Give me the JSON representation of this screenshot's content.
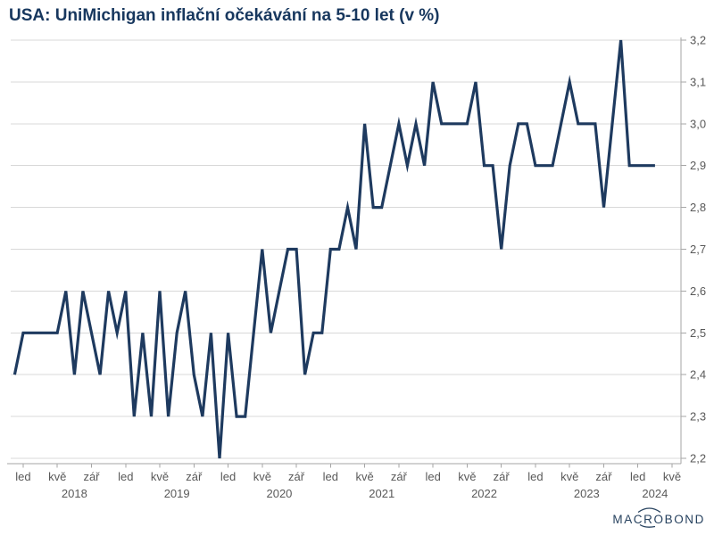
{
  "title": "USA: UniMichigan inflační očekávání na 5-10 let (v %)",
  "logo_text": "MACROBOND",
  "style": {
    "line_color": "#1E3A5F",
    "title_color": "#17375E",
    "grid_color": "#D8D8D8",
    "axis_color": "#A6A6A6",
    "label_color": "#595959",
    "logo_color": "#27425F",
    "background": "#FFFFFF"
  },
  "chart_data": {
    "type": "line",
    "title": "USA: UniMichigan inflační očekávání na 5-10 let (v %)",
    "frequency": "monthly",
    "x_start": "2017-12",
    "x_end": "2024-03",
    "x_axis_end": "2024-06",
    "grid": "horizontal",
    "legend": "none",
    "y_axis_side": "right",
    "ylim": [
      2.2,
      3.2
    ],
    "y_ticks": [
      {
        "v": 3.2,
        "label": "3,2"
      },
      {
        "v": 3.1,
        "label": "3,1"
      },
      {
        "v": 3.0,
        "label": "3,0"
      },
      {
        "v": 2.9,
        "label": "2,9"
      },
      {
        "v": 2.8,
        "label": "2,8"
      },
      {
        "v": 2.7,
        "label": "2,7"
      },
      {
        "v": 2.6,
        "label": "2,6"
      },
      {
        "v": 2.5,
        "label": "2,5"
      },
      {
        "v": 2.4,
        "label": "2,4"
      },
      {
        "v": 2.3,
        "label": "2,3"
      },
      {
        "v": 2.2,
        "label": "2,2"
      }
    ],
    "x_month_ticks": [
      {
        "label": "led",
        "idx": 1
      },
      {
        "label": "kvě",
        "idx": 5
      },
      {
        "label": "zář",
        "idx": 9
      },
      {
        "label": "led",
        "idx": 13
      },
      {
        "label": "kvě",
        "idx": 17
      },
      {
        "label": "zář",
        "idx": 21
      },
      {
        "label": "led",
        "idx": 25
      },
      {
        "label": "kvě",
        "idx": 29
      },
      {
        "label": "zář",
        "idx": 33
      },
      {
        "label": "led",
        "idx": 37
      },
      {
        "label": "kvě",
        "idx": 41
      },
      {
        "label": "zář",
        "idx": 45
      },
      {
        "label": "led",
        "idx": 49
      },
      {
        "label": "kvě",
        "idx": 53
      },
      {
        "label": "zář",
        "idx": 57
      },
      {
        "label": "led",
        "idx": 61
      },
      {
        "label": "kvě",
        "idx": 65
      },
      {
        "label": "zář",
        "idx": 69
      },
      {
        "label": "led",
        "idx": 73
      },
      {
        "label": "kvě",
        "idx": 77
      }
    ],
    "year_labels": [
      {
        "label": "2018",
        "idx": 7
      },
      {
        "label": "2019",
        "idx": 19
      },
      {
        "label": "2020",
        "idx": 31
      },
      {
        "label": "2021",
        "idx": 43
      },
      {
        "label": "2022",
        "idx": 55
      },
      {
        "label": "2023",
        "idx": 67
      },
      {
        "label": "2024",
        "idx": 75
      }
    ],
    "series": [
      {
        "name": "UniMichigan inflační očekávání na 5-10 let",
        "values": [
          2.4,
          2.5,
          2.5,
          2.5,
          2.5,
          2.5,
          2.6,
          2.4,
          2.6,
          2.5,
          2.4,
          2.6,
          2.5,
          2.6,
          2.3,
          2.5,
          2.3,
          2.6,
          2.3,
          2.5,
          2.6,
          2.4,
          2.3,
          2.5,
          2.2,
          2.5,
          2.3,
          2.3,
          2.5,
          2.7,
          2.5,
          2.6,
          2.7,
          2.7,
          2.4,
          2.5,
          2.5,
          2.7,
          2.7,
          2.8,
          2.7,
          3.0,
          2.8,
          2.8,
          2.9,
          3.0,
          2.9,
          3.0,
          2.9,
          3.1,
          3.0,
          3.0,
          3.0,
          3.0,
          3.1,
          2.9,
          2.9,
          2.7,
          2.9,
          3.0,
          3.0,
          2.9,
          2.9,
          2.9,
          3.0,
          3.1,
          3.0,
          3.0,
          3.0,
          2.8,
          3.0,
          3.2,
          2.9,
          2.9,
          2.9,
          2.9
        ]
      }
    ]
  }
}
